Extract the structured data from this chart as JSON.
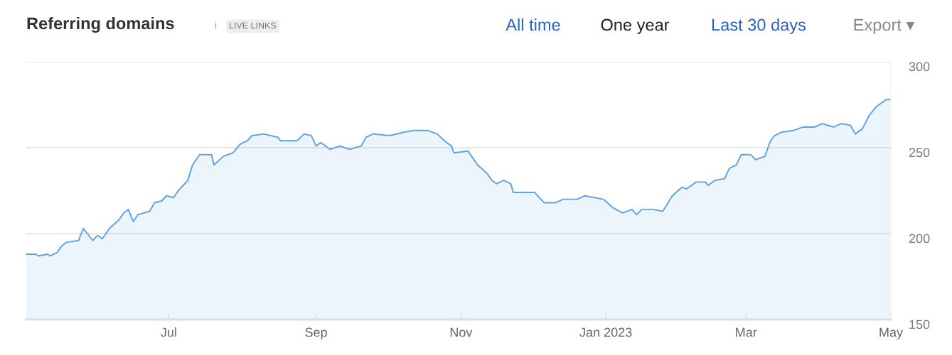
{
  "chart_data": {
    "type": "area",
    "title": "Referring domains",
    "annotations": [
      "i",
      "LIVE LINKS",
      "All time",
      "One year",
      "Last 30 days",
      "Export ▾"
    ],
    "x": [
      "2022-05-02",
      "2022-05-06",
      "2022-05-07",
      "2022-05-11",
      "2022-05-12",
      "2022-05-15",
      "2022-05-17",
      "2022-05-19",
      "2022-05-24",
      "2022-05-26",
      "2022-05-30",
      "2022-06-01",
      "2022-06-03",
      "2022-06-06",
      "2022-06-10",
      "2022-06-12",
      "2022-06-14",
      "2022-06-16",
      "2022-06-18",
      "2022-06-23",
      "2022-06-25",
      "2022-06-28",
      "2022-06-30",
      "2022-07-03",
      "2022-07-05",
      "2022-07-09",
      "2022-07-11",
      "2022-07-14",
      "2022-07-19",
      "2022-07-20",
      "2022-07-24",
      "2022-07-28",
      "2022-07-31",
      "2022-08-03",
      "2022-08-05",
      "2022-08-10",
      "2022-08-16",
      "2022-08-17",
      "2022-08-24",
      "2022-08-27",
      "2022-08-30",
      "2022-09-01",
      "2022-09-03",
      "2022-09-07",
      "2022-09-11",
      "2022-09-15",
      "2022-09-20",
      "2022-09-22",
      "2022-09-25",
      "2022-10-02",
      "2022-10-08",
      "2022-10-12",
      "2022-10-18",
      "2022-10-22",
      "2022-10-25",
      "2022-10-28",
      "2022-10-29",
      "2022-11-04",
      "2022-11-08",
      "2022-11-12",
      "2022-11-14",
      "2022-11-16",
      "2022-11-19",
      "2022-11-22",
      "2022-11-23",
      "2022-11-26",
      "2022-12-02",
      "2022-12-06",
      "2022-12-11",
      "2022-12-14",
      "2022-12-20",
      "2022-12-23",
      "2022-12-31",
      "2023-01-04",
      "2023-01-08",
      "2023-01-12",
      "2023-01-14",
      "2023-01-16",
      "2023-01-21",
      "2023-01-25",
      "2023-01-29",
      "2023-02-02",
      "2023-02-04",
      "2023-02-08",
      "2023-02-12",
      "2023-02-13",
      "2023-02-16",
      "2023-02-20",
      "2023-02-22",
      "2023-02-25",
      "2023-02-27",
      "2023-03-03",
      "2023-03-05",
      "2023-03-09",
      "2023-03-11",
      "2023-03-13",
      "2023-03-16",
      "2023-03-21",
      "2023-03-25",
      "2023-03-30",
      "2023-04-02",
      "2023-04-07",
      "2023-04-10",
      "2023-04-14",
      "2023-04-16",
      "2023-04-19",
      "2023-04-22",
      "2023-04-25",
      "2023-04-29",
      "2023-05-01"
    ],
    "series": [
      {
        "color": "#5da2e4",
        "values": [
          188,
          188,
          187,
          188,
          187,
          189,
          193,
          195,
          196,
          203,
          196,
          199,
          197,
          203,
          208,
          212,
          214,
          207,
          211,
          213,
          218,
          219,
          222,
          221,
          225,
          231,
          240,
          246,
          246,
          240,
          245,
          247,
          252,
          254,
          257,
          258,
          256,
          254,
          254,
          258,
          257,
          251,
          253,
          249,
          251,
          249,
          251,
          256,
          258,
          257,
          259,
          260,
          260,
          258,
          254,
          251,
          247,
          248,
          240,
          235,
          231,
          229,
          231,
          229,
          224,
          224,
          224,
          218,
          218,
          220,
          220,
          222,
          220,
          215,
          212,
          214,
          211,
          214,
          214,
          213,
          222,
          227,
          226,
          230,
          230,
          228,
          231,
          232,
          238,
          240,
          246,
          246,
          243,
          245,
          253,
          257,
          259,
          260,
          262,
          262,
          264,
          262,
          264,
          263,
          258,
          261,
          269,
          274,
          278,
          278
        ]
      }
    ],
    "xlim": [
      "2022-05-02",
      "2023-05-01"
    ],
    "xticks": [
      {
        "value": "2022-07-01",
        "label": "Jul"
      },
      {
        "value": "2022-09-01",
        "label": "Sep"
      },
      {
        "value": "2022-11-01",
        "label": "Nov"
      },
      {
        "value": "2023-01-01",
        "label": "Jan 2023"
      },
      {
        "value": "2023-03-01",
        "label": "Mar"
      },
      {
        "value": "2023-05-01",
        "label": "May"
      }
    ],
    "ylim": [
      150,
      300
    ],
    "yticks": [
      150,
      200,
      250,
      300
    ],
    "grid": "y",
    "marker": "none",
    "line_style": "solid"
  }
}
